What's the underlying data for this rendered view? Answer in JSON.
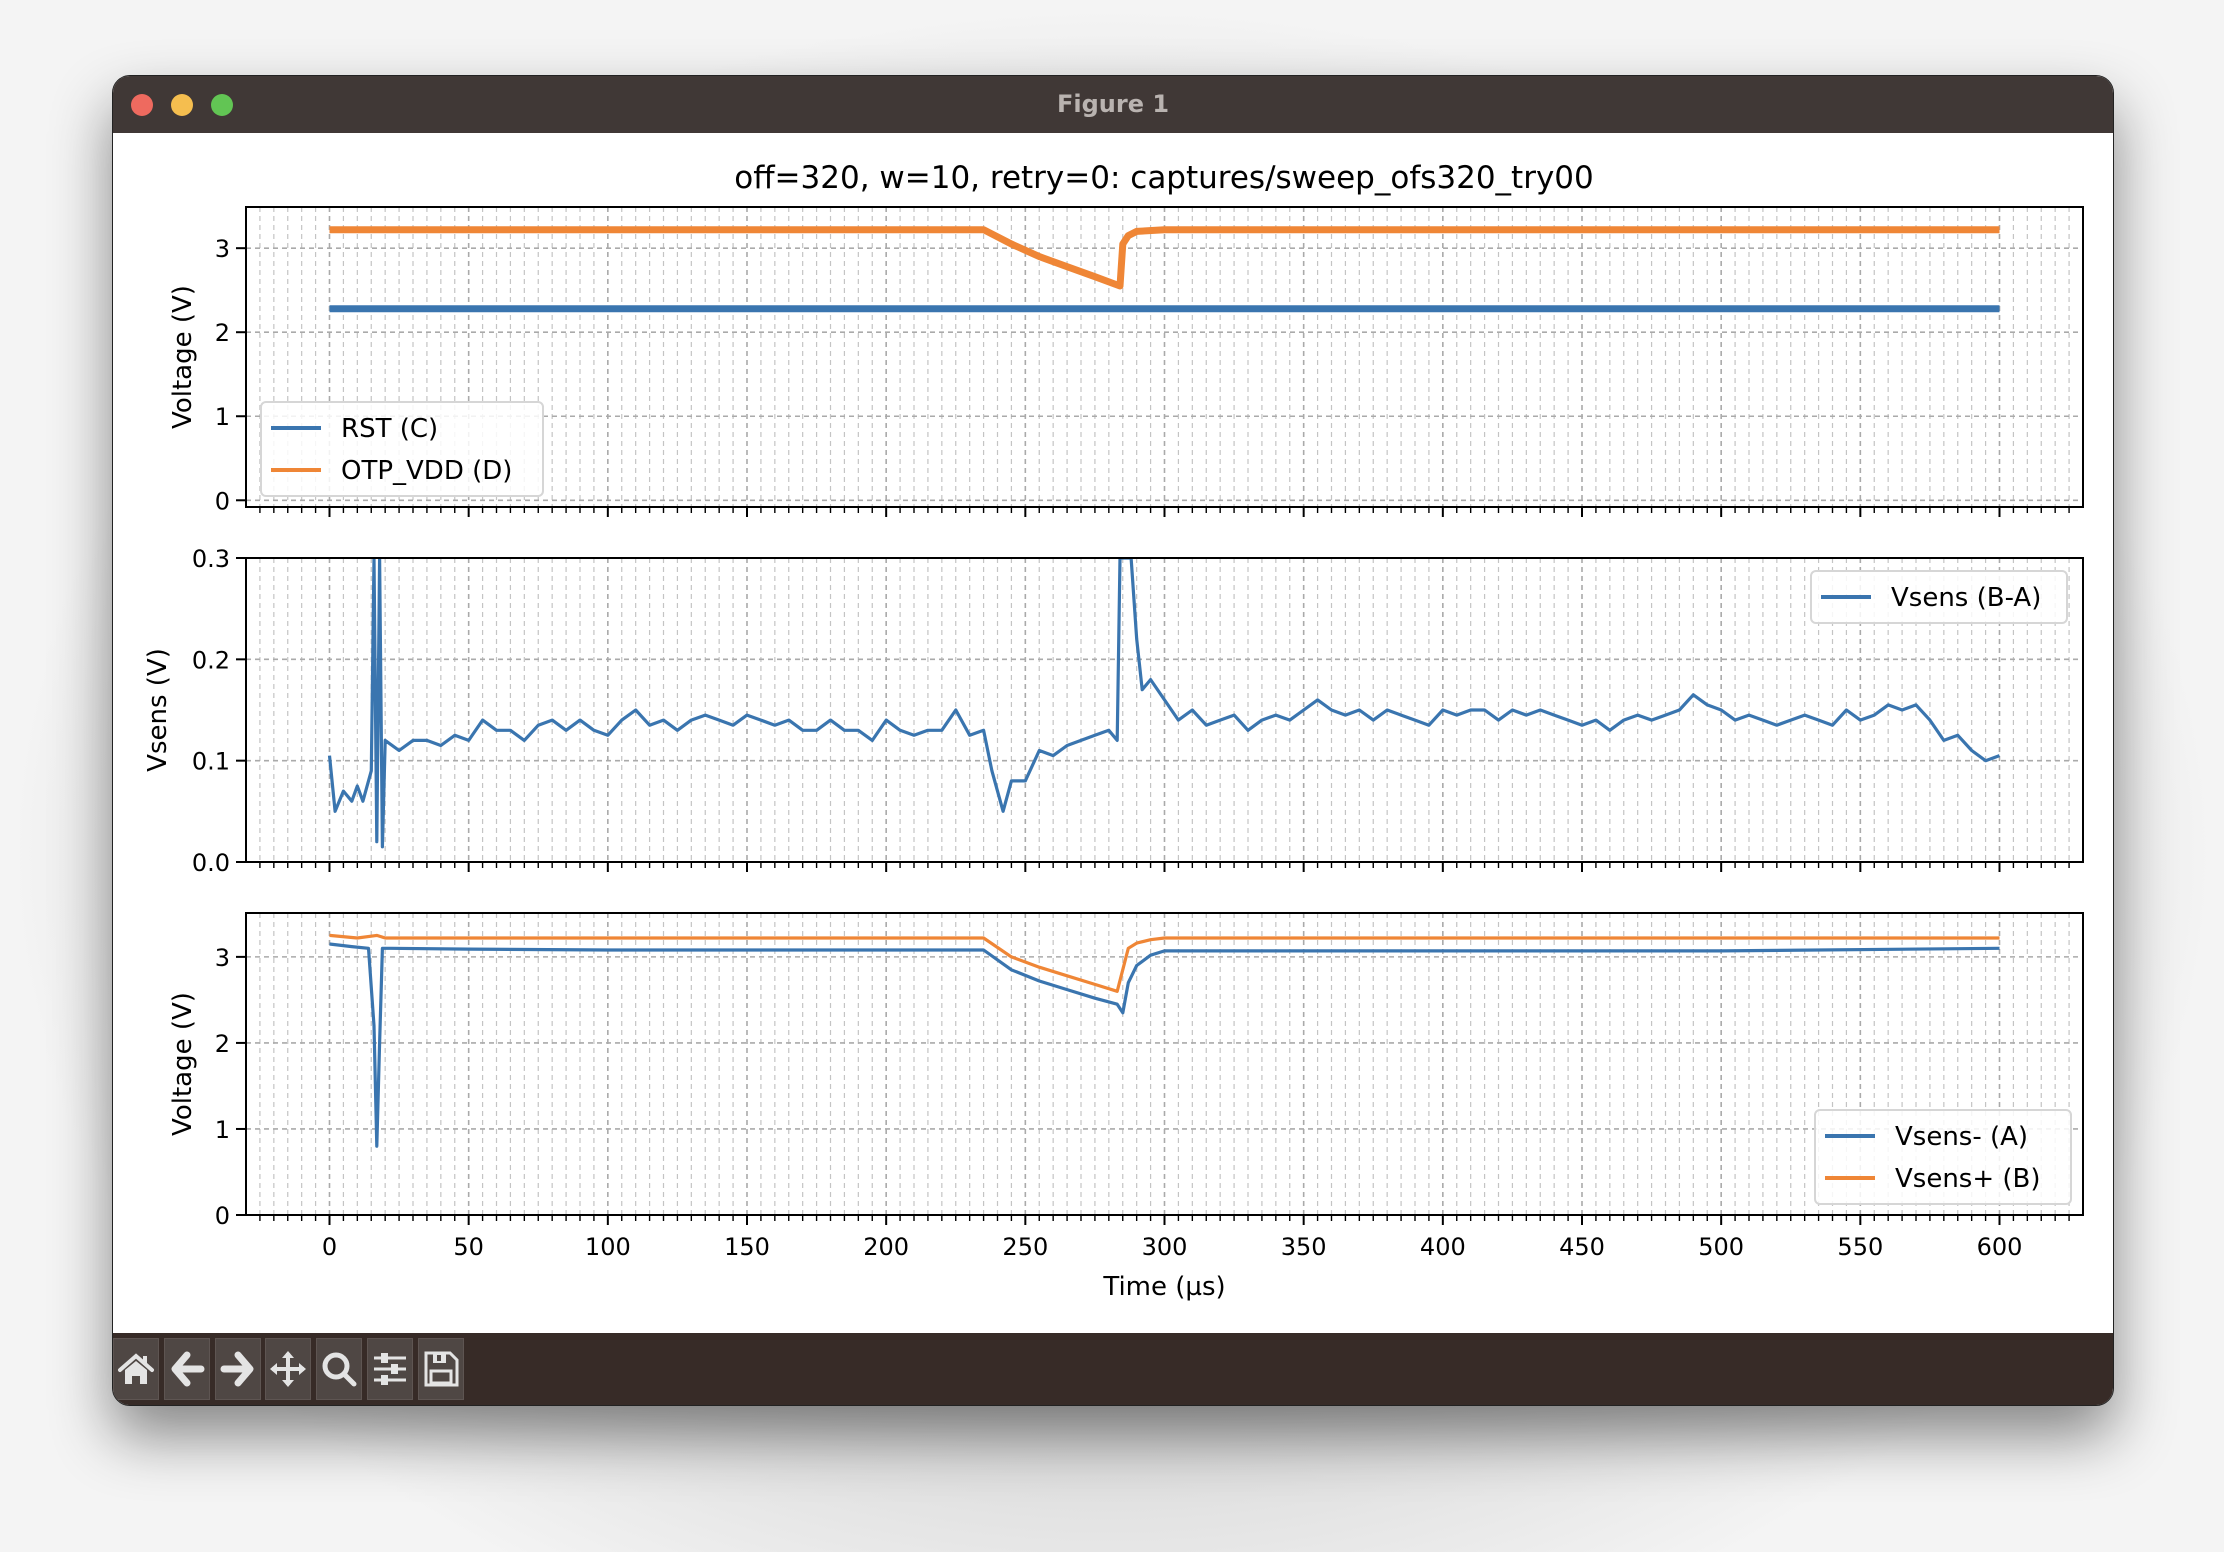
{
  "window": {
    "title": "Figure 1",
    "traffic_lights": [
      "#ee6a5f",
      "#f5be4f",
      "#62c554"
    ]
  },
  "toolbar": {
    "buttons": [
      {
        "name": "home-icon",
        "label": "Home"
      },
      {
        "name": "back-arrow-icon",
        "label": "Back"
      },
      {
        "name": "forward-arrow-icon",
        "label": "Forward"
      },
      {
        "name": "pan-move-icon",
        "label": "Pan"
      },
      {
        "name": "zoom-magnifier-icon",
        "label": "Zoom"
      },
      {
        "name": "sliders-configure-icon",
        "label": "Configure subplots"
      },
      {
        "name": "save-floppy-icon",
        "label": "Save"
      }
    ]
  },
  "colors": {
    "blue": "#3a75af",
    "orange": "#ef8636",
    "grid": "#b0b0b0"
  },
  "figure": {
    "title": "off=320, w=10, retry=0: captures/sweep_ofs320_try00",
    "xlabel": "Time (µs)"
  },
  "chart_data": [
    {
      "type": "line",
      "ylabel": "Voltage (V)",
      "xlim": [
        -30,
        630
      ],
      "ylim": [
        -0.08,
        3.49
      ],
      "yticks": [
        0,
        1,
        2,
        3
      ],
      "xticks": [
        0,
        50,
        100,
        150,
        200,
        250,
        300,
        350,
        400,
        450,
        500,
        550,
        600
      ],
      "grid": true,
      "legend": "lower-left",
      "series": [
        {
          "name": "RST (C)",
          "color": "orange_blue_blue",
          "x": [
            0,
            100,
            200,
            250,
            300,
            400,
            500,
            600
          ],
          "y": [
            2.28,
            2.28,
            2.28,
            2.28,
            2.28,
            2.28,
            2.28,
            2.28
          ]
        },
        {
          "name": "OTP_VDD (D)",
          "x": [
            0,
            100,
            200,
            235,
            245,
            255,
            265,
            275,
            284,
            285,
            287,
            290,
            300,
            400,
            500,
            600
          ],
          "y": [
            3.22,
            3.22,
            3.22,
            3.22,
            3.05,
            2.9,
            2.78,
            2.66,
            2.55,
            3.05,
            3.15,
            3.2,
            3.22,
            3.22,
            3.22,
            3.22
          ]
        }
      ]
    },
    {
      "type": "line",
      "ylabel": "Vsens (V)",
      "xlim": [
        -30,
        630
      ],
      "ylim": [
        0.0,
        0.3
      ],
      "yticks": [
        0.0,
        0.1,
        0.2,
        0.3
      ],
      "ytick_labels": [
        "0.0",
        "0.1",
        "0.2",
        "0.3"
      ],
      "grid": true,
      "legend": "upper-right",
      "series": [
        {
          "name": "Vsens (B-A)",
          "x": [
            0,
            2,
            5,
            8,
            10,
            12,
            15,
            16,
            17,
            18,
            19,
            20,
            25,
            30,
            35,
            40,
            45,
            50,
            55,
            60,
            65,
            70,
            75,
            80,
            85,
            90,
            95,
            100,
            105,
            110,
            115,
            120,
            125,
            130,
            135,
            140,
            145,
            150,
            155,
            160,
            165,
            170,
            175,
            180,
            185,
            190,
            195,
            200,
            205,
            210,
            215,
            220,
            225,
            230,
            235,
            238,
            240,
            242,
            245,
            250,
            255,
            260,
            265,
            270,
            275,
            280,
            283,
            284,
            288,
            290,
            292,
            295,
            300,
            305,
            310,
            315,
            320,
            325,
            330,
            335,
            340,
            345,
            350,
            355,
            360,
            365,
            370,
            375,
            380,
            385,
            390,
            395,
            400,
            405,
            410,
            415,
            420,
            425,
            430,
            435,
            440,
            445,
            450,
            455,
            460,
            465,
            470,
            475,
            480,
            485,
            490,
            495,
            500,
            505,
            510,
            515,
            520,
            525,
            530,
            535,
            540,
            545,
            550,
            555,
            560,
            565,
            570,
            575,
            580,
            585,
            590,
            595,
            600
          ],
          "y": [
            0.105,
            0.05,
            0.07,
            0.06,
            0.075,
            0.06,
            0.09,
            0.3,
            0.02,
            0.3,
            0.015,
            0.12,
            0.11,
            0.12,
            0.12,
            0.115,
            0.125,
            0.12,
            0.14,
            0.13,
            0.13,
            0.12,
            0.135,
            0.14,
            0.13,
            0.14,
            0.13,
            0.125,
            0.14,
            0.15,
            0.135,
            0.14,
            0.13,
            0.14,
            0.145,
            0.14,
            0.135,
            0.145,
            0.14,
            0.135,
            0.14,
            0.13,
            0.13,
            0.14,
            0.13,
            0.13,
            0.12,
            0.14,
            0.13,
            0.125,
            0.13,
            0.13,
            0.15,
            0.125,
            0.13,
            0.09,
            0.07,
            0.05,
            0.08,
            0.08,
            0.11,
            0.105,
            0.115,
            0.12,
            0.125,
            0.13,
            0.12,
            0.3,
            0.3,
            0.22,
            0.17,
            0.18,
            0.16,
            0.14,
            0.15,
            0.135,
            0.14,
            0.145,
            0.13,
            0.14,
            0.145,
            0.14,
            0.15,
            0.16,
            0.15,
            0.145,
            0.15,
            0.14,
            0.15,
            0.145,
            0.14,
            0.135,
            0.15,
            0.145,
            0.15,
            0.15,
            0.14,
            0.15,
            0.145,
            0.15,
            0.145,
            0.14,
            0.135,
            0.14,
            0.13,
            0.14,
            0.145,
            0.14,
            0.145,
            0.15,
            0.165,
            0.155,
            0.15,
            0.14,
            0.145,
            0.14,
            0.135,
            0.14,
            0.145,
            0.14,
            0.135,
            0.15,
            0.14,
            0.145,
            0.155,
            0.15,
            0.155,
            0.14,
            0.12,
            0.125,
            0.11,
            0.1,
            0.105
          ]
        }
      ]
    },
    {
      "type": "line",
      "ylabel": "Voltage (V)",
      "xlabel": "Time (µs)",
      "xlim": [
        -30,
        630
      ],
      "ylim": [
        0,
        3.51
      ],
      "yticks": [
        0,
        1,
        2,
        3
      ],
      "xticks": [
        0,
        50,
        100,
        150,
        200,
        250,
        300,
        350,
        400,
        450,
        500,
        550,
        600
      ],
      "grid": true,
      "legend": "lower-right",
      "series": [
        {
          "name": "Vsens- (A)",
          "x": [
            0,
            8,
            14,
            16,
            17,
            18,
            19,
            22,
            50,
            100,
            150,
            200,
            235,
            245,
            255,
            265,
            275,
            283,
            285,
            287,
            290,
            295,
            300,
            400,
            500,
            600
          ],
          "y": [
            3.15,
            3.12,
            3.1,
            2.2,
            0.8,
            2.0,
            3.1,
            3.1,
            3.09,
            3.08,
            3.08,
            3.08,
            3.08,
            2.85,
            2.72,
            2.62,
            2.52,
            2.45,
            2.35,
            2.7,
            2.9,
            3.02,
            3.07,
            3.07,
            3.07,
            3.1
          ]
        },
        {
          "name": "Vsens+ (B)",
          "x": [
            0,
            10,
            17,
            20,
            50,
            100,
            150,
            200,
            235,
            245,
            255,
            265,
            275,
            283,
            287,
            290,
            295,
            300,
            400,
            500,
            600
          ],
          "y": [
            3.25,
            3.22,
            3.25,
            3.22,
            3.22,
            3.22,
            3.22,
            3.22,
            3.22,
            3.0,
            2.88,
            2.78,
            2.68,
            2.6,
            3.1,
            3.16,
            3.2,
            3.22,
            3.22,
            3.22,
            3.22
          ]
        }
      ]
    }
  ]
}
